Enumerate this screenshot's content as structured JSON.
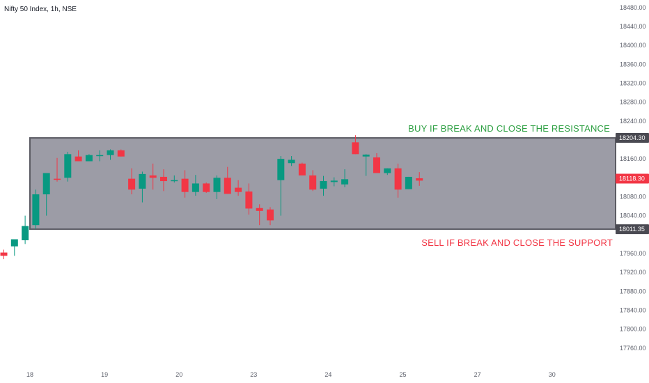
{
  "header": {
    "title": "Nifty 50 Index, 1h, NSE"
  },
  "colors": {
    "up": "#089981",
    "down": "#f23645",
    "range_fill": "#9c9ca6",
    "range_border": "#5b5b63",
    "buy_text": "#2ea043",
    "sell_text": "#f23645",
    "tag_gray": "#4a4a52",
    "tag_red": "#f23645"
  },
  "chart_data": {
    "type": "candlestick",
    "title": "Nifty 50 Index, 1h, NSE",
    "y_ticks": [
      "18480.00",
      "18440.00",
      "18400.00",
      "18360.00",
      "18320.00",
      "18280.00",
      "18240.00",
      "18160.00",
      "18080.00",
      "18040.00",
      "17960.00",
      "17920.00",
      "17880.00",
      "17840.00",
      "17800.00",
      "17760.00"
    ],
    "ylim": [
      17745,
      18490
    ],
    "x_ticks": [
      {
        "label": "18",
        "index": 3
      },
      {
        "label": "19",
        "index": 10
      },
      {
        "label": "20",
        "index": 17
      },
      {
        "label": "23",
        "index": 24
      },
      {
        "label": "24",
        "index": 31
      },
      {
        "label": "25",
        "index": 38
      },
      {
        "label": "27",
        "index": 45
      },
      {
        "label": "30",
        "index": 52
      }
    ],
    "candles": [
      {
        "o": 17962,
        "h": 17968,
        "l": 17948,
        "c": 17955
      },
      {
        "o": 17975,
        "h": 17985,
        "l": 17955,
        "c": 17990
      },
      {
        "o": 17988,
        "h": 18040,
        "l": 17980,
        "c": 18018
      },
      {
        "o": 18020,
        "h": 18095,
        "l": 18012,
        "c": 18085
      },
      {
        "o": 18085,
        "h": 18125,
        "l": 18040,
        "c": 18130
      },
      {
        "o": 18118,
        "h": 18162,
        "l": 18112,
        "c": 18117
      },
      {
        "o": 18120,
        "h": 18175,
        "l": 18112,
        "c": 18170
      },
      {
        "o": 18165,
        "h": 18178,
        "l": 18155,
        "c": 18155
      },
      {
        "o": 18155,
        "h": 18170,
        "l": 18155,
        "c": 18168
      },
      {
        "o": 18168,
        "h": 18178,
        "l": 18155,
        "c": 18168
      },
      {
        "o": 18168,
        "h": 18180,
        "l": 18158,
        "c": 18178
      },
      {
        "o": 18178,
        "h": 18180,
        "l": 18165,
        "c": 18165
      },
      {
        "o": 18118,
        "h": 18140,
        "l": 18085,
        "c": 18095
      },
      {
        "o": 18097,
        "h": 18133,
        "l": 18068,
        "c": 18128
      },
      {
        "o": 18125,
        "h": 18150,
        "l": 18095,
        "c": 18120
      },
      {
        "o": 18122,
        "h": 18138,
        "l": 18092,
        "c": 18113
      },
      {
        "o": 18115,
        "h": 18125,
        "l": 18110,
        "c": 18115
      },
      {
        "o": 18118,
        "h": 18136,
        "l": 18078,
        "c": 18090
      },
      {
        "o": 18090,
        "h": 18126,
        "l": 18082,
        "c": 18108
      },
      {
        "o": 18108,
        "h": 18110,
        "l": 18088,
        "c": 18090
      },
      {
        "o": 18090,
        "h": 18125,
        "l": 18075,
        "c": 18120
      },
      {
        "o": 18120,
        "h": 18143,
        "l": 18086,
        "c": 18086
      },
      {
        "o": 18099,
        "h": 18115,
        "l": 18082,
        "c": 18090
      },
      {
        "o": 18091,
        "h": 18108,
        "l": 18042,
        "c": 18055
      },
      {
        "o": 18056,
        "h": 18064,
        "l": 18020,
        "c": 18050
      },
      {
        "o": 18053,
        "h": 18058,
        "l": 18020,
        "c": 18030
      },
      {
        "o": 18115,
        "h": 18166,
        "l": 18040,
        "c": 18160
      },
      {
        "o": 18151,
        "h": 18166,
        "l": 18145,
        "c": 18158
      },
      {
        "o": 18150,
        "h": 18152,
        "l": 18125,
        "c": 18125
      },
      {
        "o": 18125,
        "h": 18136,
        "l": 18092,
        "c": 18095
      },
      {
        "o": 18097,
        "h": 18124,
        "l": 18082,
        "c": 18113
      },
      {
        "o": 18111,
        "h": 18121,
        "l": 18102,
        "c": 18114
      },
      {
        "o": 18106,
        "h": 18138,
        "l": 18100,
        "c": 18117
      },
      {
        "o": 18195,
        "h": 18210,
        "l": 18170,
        "c": 18170
      },
      {
        "o": 18165,
        "h": 18170,
        "l": 18124,
        "c": 18169
      },
      {
        "o": 18163,
        "h": 18172,
        "l": 18130,
        "c": 18130
      },
      {
        "o": 18130,
        "h": 18140,
        "l": 18126,
        "c": 18140
      },
      {
        "o": 18140,
        "h": 18150,
        "l": 18078,
        "c": 18095
      },
      {
        "o": 18096,
        "h": 18122,
        "l": 18096,
        "c": 18122
      },
      {
        "o": 18119,
        "h": 18132,
        "l": 18103,
        "c": 18114
      }
    ],
    "candle_x_index": [
      0,
      1,
      2,
      3,
      4,
      5,
      6,
      7,
      8,
      9,
      10,
      11,
      12,
      13,
      14,
      15,
      16,
      17,
      18,
      19,
      20,
      21,
      22,
      23,
      24,
      25,
      26,
      27,
      28,
      29,
      30,
      31,
      32,
      33,
      34,
      35,
      36,
      37,
      38,
      39
    ],
    "range": {
      "resistance": 18204.3,
      "support": 18011.35,
      "resistance_label": "18204.30",
      "support_label": "18011.35"
    },
    "last_price_label": "18118.30",
    "last_price": 18118.3,
    "annotations": {
      "buy": "BUY IF BREAK AND CLOSE THE RESISTANCE",
      "sell": "SELL IF BREAK AND CLOSE THE SUPPORT"
    }
  }
}
